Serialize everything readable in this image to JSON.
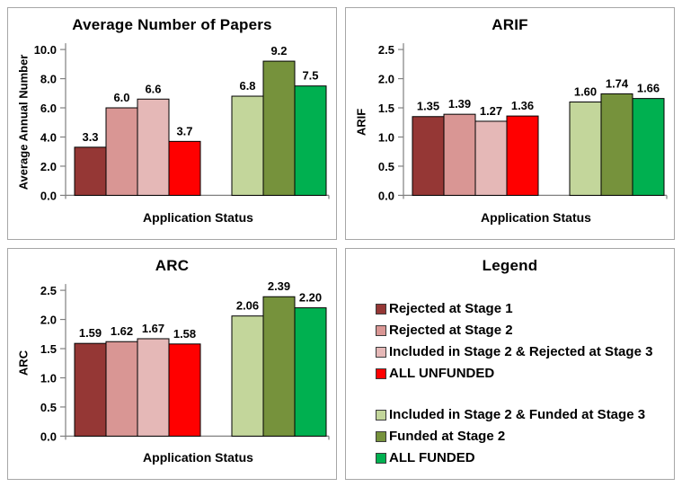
{
  "bar_colors": [
    "#953735",
    "#D99694",
    "#E5B8B7",
    "#FF0000",
    "#C3D69B",
    "#76923C",
    "#00B050"
  ],
  "panels": {
    "papers": {
      "title": "Average Number of Papers",
      "ylabel": "Average Annual Number",
      "xlabel": "Application Status"
    },
    "arif": {
      "title": "ARIF",
      "ylabel": "ARIF",
      "xlabel": "Application Status"
    },
    "arc": {
      "title": "ARC",
      "ylabel": "ARC",
      "xlabel": "Application Status"
    },
    "legend": {
      "title": "Legend",
      "items": [
        {
          "label": "Rejected at Stage 1",
          "color": "#953735",
          "group": 1
        },
        {
          "label": "Rejected at Stage 2",
          "color": "#D99694",
          "group": 1
        },
        {
          "label": "Included in Stage 2 & Rejected at Stage 3",
          "color": "#E5B8B7",
          "group": 1
        },
        {
          "label": "ALL UNFUNDED",
          "color": "#FF0000",
          "group": 1
        },
        {
          "label": "Included in Stage 2 & Funded at Stage 3",
          "color": "#C3D69B",
          "group": 2
        },
        {
          "label": "Funded at Stage 2",
          "color": "#76923C",
          "group": 2
        },
        {
          "label": "ALL FUNDED",
          "color": "#00B050",
          "group": 2
        }
      ]
    }
  },
  "chart_data": [
    {
      "type": "bar",
      "title": "Average Number of Papers",
      "xlabel": "Application Status",
      "ylabel": "Average Annual Number",
      "ylim": [
        0,
        10
      ],
      "ytick_step": 2,
      "ytick_labels": [
        "0.0",
        "2.0",
        "4.0",
        "6.0",
        "8.0",
        "10.0"
      ],
      "grid": false,
      "legend_position": "separate-panel",
      "categories": [
        "Rejected at Stage 1",
        "Rejected at Stage 2",
        "Included in Stage 2 & Rejected at Stage 3",
        "ALL UNFUNDED",
        "Included in Stage 2 & Funded at Stage 3",
        "Funded at Stage 2",
        "ALL FUNDED"
      ],
      "values": [
        3.3,
        6.0,
        6.6,
        3.7,
        6.8,
        9.2,
        7.5
      ],
      "labels": [
        "3.3",
        "6.0",
        "6.6",
        "3.7",
        "6.8",
        "9.2",
        "7.5"
      ]
    },
    {
      "type": "bar",
      "title": "ARIF",
      "xlabel": "Application Status",
      "ylabel": "ARIF",
      "ylim": [
        0,
        2.5
      ],
      "ytick_step": 0.5,
      "ytick_labels": [
        "0.0",
        "0.5",
        "1.0",
        "1.5",
        "2.0",
        "2.5"
      ],
      "grid": false,
      "legend_position": "separate-panel",
      "categories": [
        "Rejected at Stage 1",
        "Rejected at Stage 2",
        "Included in Stage 2 & Rejected at Stage 3",
        "ALL UNFUNDED",
        "Included in Stage 2 & Funded at Stage 3",
        "Funded at Stage 2",
        "ALL FUNDED"
      ],
      "values": [
        1.35,
        1.39,
        1.27,
        1.36,
        1.6,
        1.74,
        1.66
      ],
      "labels": [
        "1.35",
        "1.39",
        "1.27",
        "1.36",
        "1.60",
        "1.74",
        "1.66"
      ]
    },
    {
      "type": "bar",
      "title": "ARC",
      "xlabel": "Application Status",
      "ylabel": "ARC",
      "ylim": [
        0,
        2.5
      ],
      "ytick_step": 0.5,
      "ytick_labels": [
        "0.0",
        "0.5",
        "1.0",
        "1.5",
        "2.0",
        "2.5"
      ],
      "grid": false,
      "legend_position": "separate-panel",
      "categories": [
        "Rejected at Stage 1",
        "Rejected at Stage 2",
        "Included in Stage 2 & Rejected at Stage 3",
        "ALL UNFUNDED",
        "Included in Stage 2 & Funded at Stage 3",
        "Funded at Stage 2",
        "ALL FUNDED"
      ],
      "values": [
        1.59,
        1.62,
        1.67,
        1.58,
        2.06,
        2.39,
        2.2
      ],
      "labels": [
        "1.59",
        "1.62",
        "1.67",
        "1.58",
        "2.06",
        "2.39",
        "2.20"
      ]
    }
  ]
}
